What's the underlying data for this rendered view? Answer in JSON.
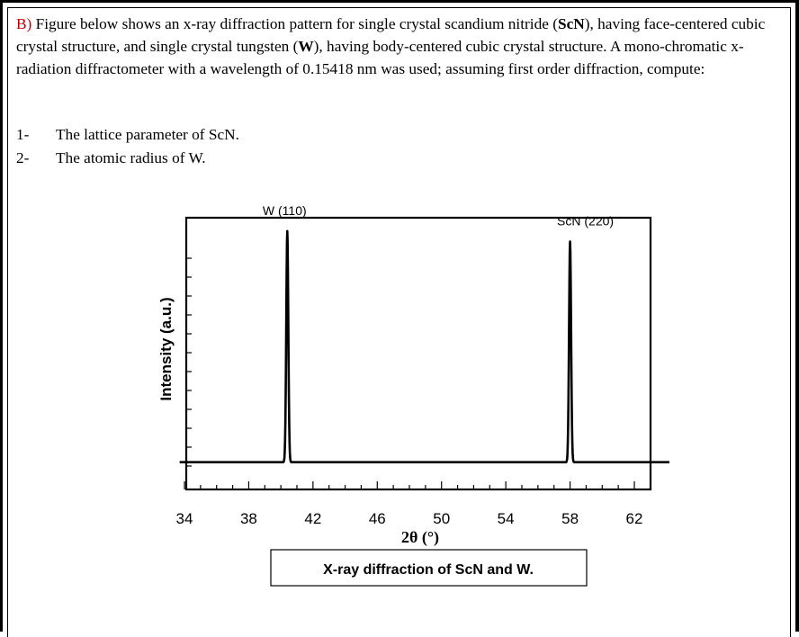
{
  "problem": {
    "prefix": "B)",
    "text_1": " Figure below shows an x-ray diffraction pattern for single crystal scandium nitride (",
    "bold_1": "ScN",
    "text_2": "), having face-centered cubic crystal structure, and single crystal tungsten (",
    "bold_2": "W",
    "text_3": "), having body-centered cubic crystal structure. A mono-chromatic x-radiation diffractometer with a wavelength of 0.15418 nm was used; assuming first order diffraction, compute:"
  },
  "questions": [
    {
      "number": "1-",
      "text": "The lattice parameter of ScN."
    },
    {
      "number": "2-",
      "text": "The atomic radius of W."
    }
  ],
  "colors": {
    "ink": "#000000",
    "background": "#ffffff"
  },
  "chart_data": {
    "type": "line",
    "xlabel": "2θ (°)",
    "ylabel": "Intensity (a.u.)",
    "caption": "X-ray diffraction of ScN and W.",
    "x_ticks": [
      34,
      38,
      42,
      46,
      50,
      54,
      58,
      62
    ],
    "xlim": [
      34,
      62
    ],
    "ylim": [
      0,
      1
    ],
    "baseline": 0.09,
    "peaks": [
      {
        "label": "W (110)",
        "x": 40.4,
        "height": 0.97
      },
      {
        "label": "ScN (220)",
        "x": 58.0,
        "height": 0.93
      }
    ],
    "grid": false,
    "legend": "none"
  }
}
